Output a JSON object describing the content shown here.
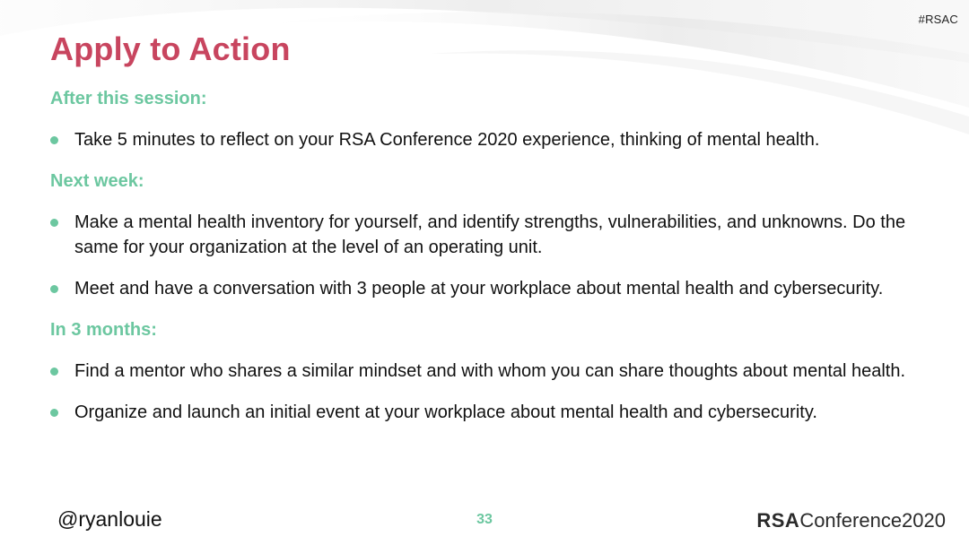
{
  "slide": {
    "hashtag": "#RSAC",
    "title": "Apply to Action",
    "sections": [
      {
        "heading": "After this session:",
        "bullets": [
          "Take 5 minutes to reflect on your RSA Conference 2020 experience, thinking of mental health."
        ]
      },
      {
        "heading": "Next week:",
        "bullets": [
          "Make a mental health inventory for yourself, and identify strengths, vulnerabilities, and unknowns. Do the same for your organization at the level of an operating unit.",
          "Meet and have a conversation with 3 people at your workplace about mental health and cybersecurity."
        ]
      },
      {
        "heading": "In 3 months:",
        "bullets": [
          "Find a mentor who shares a similar mindset and with whom you can share thoughts about mental health.",
          "Organize and launch an initial event at your workplace about mental health and cybersecurity."
        ]
      }
    ]
  },
  "footer": {
    "handle": "@ryanlouie",
    "page_number": "33",
    "logo_rsa": "RSA",
    "logo_conference": "Conference2020"
  },
  "colors": {
    "title": "#c8455f",
    "accent_green": "#6cc7a0"
  }
}
